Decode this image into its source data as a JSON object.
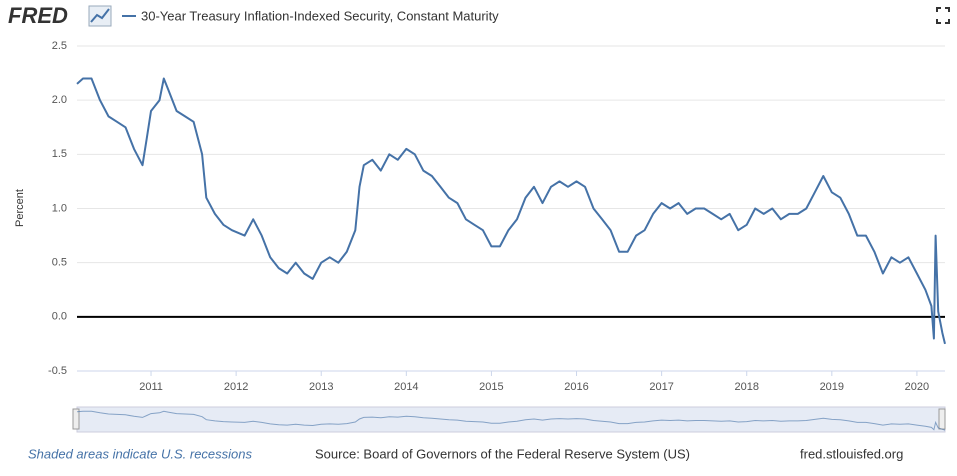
{
  "chart_data": {
    "type": "line",
    "logo": "FRED",
    "ylabel": "Percent",
    "recession_note": "Shaded areas indicate U.S. recessions",
    "source": "Source: Board of Governors of the Federal Reserve System (US)",
    "site": "fred.stlouisfed.org",
    "grid": true,
    "zero_line": true,
    "xlim": [
      2010.13,
      2020.33
    ],
    "xticks": [
      2011,
      2012,
      2013,
      2014,
      2015,
      2016,
      2017,
      2018,
      2019,
      2020
    ],
    "ylim": [
      -0.5,
      2.5
    ],
    "yticks": [
      {
        "value": 2.5,
        "label": "2.5"
      },
      {
        "value": 2,
        "label": "2.0"
      },
      {
        "value": 1.5,
        "label": "1.5"
      },
      {
        "value": 1,
        "label": "1.0"
      },
      {
        "value": 0.5,
        "label": "0.5"
      },
      {
        "value": 0,
        "label": "0.0"
      },
      {
        "value": -0.5,
        "label": "-0.5"
      }
    ],
    "x": [
      2010.13,
      2010.2,
      2010.3,
      2010.4,
      2010.5,
      2010.6,
      2010.7,
      2010.8,
      2010.9,
      2010.95,
      2011.0,
      2011.1,
      2011.15,
      2011.2,
      2011.3,
      2011.4,
      2011.5,
      2011.6,
      2011.65,
      2011.75,
      2011.85,
      2011.95,
      2012.1,
      2012.2,
      2012.3,
      2012.4,
      2012.5,
      2012.6,
      2012.7,
      2012.8,
      2012.9,
      2013.0,
      2013.1,
      2013.2,
      2013.3,
      2013.4,
      2013.45,
      2013.5,
      2013.6,
      2013.7,
      2013.8,
      2013.9,
      2014.0,
      2014.1,
      2014.2,
      2014.3,
      2014.4,
      2014.5,
      2014.6,
      2014.7,
      2014.8,
      2014.9,
      2015.0,
      2015.1,
      2015.2,
      2015.3,
      2015.4,
      2015.5,
      2015.6,
      2015.7,
      2015.8,
      2015.9,
      2016.0,
      2016.1,
      2016.2,
      2016.3,
      2016.4,
      2016.5,
      2016.6,
      2016.7,
      2016.8,
      2016.9,
      2017.0,
      2017.1,
      2017.2,
      2017.3,
      2017.4,
      2017.5,
      2017.6,
      2017.7,
      2017.8,
      2017.9,
      2018.0,
      2018.1,
      2018.2,
      2018.3,
      2018.4,
      2018.5,
      2018.6,
      2018.7,
      2018.8,
      2018.9,
      2019.0,
      2019.1,
      2019.2,
      2019.3,
      2019.4,
      2019.5,
      2019.6,
      2019.7,
      2019.8,
      2019.9,
      2020.0,
      2020.1,
      2020.17,
      2020.2,
      2020.22,
      2020.25,
      2020.3,
      2020.33
    ],
    "series": [
      {
        "name": "30-Year Treasury Inflation-Indexed Security, Constant Maturity",
        "color": "#4572a7",
        "values": [
          2.15,
          2.2,
          2.2,
          2.0,
          1.85,
          1.8,
          1.75,
          1.55,
          1.4,
          1.65,
          1.9,
          2.0,
          2.2,
          2.1,
          1.9,
          1.85,
          1.8,
          1.5,
          1.1,
          0.95,
          0.85,
          0.8,
          0.75,
          0.9,
          0.75,
          0.55,
          0.45,
          0.4,
          0.5,
          0.4,
          0.35,
          0.5,
          0.55,
          0.5,
          0.6,
          0.8,
          1.2,
          1.4,
          1.45,
          1.35,
          1.5,
          1.45,
          1.55,
          1.5,
          1.35,
          1.3,
          1.2,
          1.1,
          1.05,
          0.9,
          0.85,
          0.8,
          0.65,
          0.65,
          0.8,
          0.9,
          1.1,
          1.2,
          1.05,
          1.2,
          1.25,
          1.2,
          1.25,
          1.2,
          1.0,
          0.9,
          0.8,
          0.6,
          0.6,
          0.75,
          0.8,
          0.95,
          1.05,
          1.0,
          1.05,
          0.95,
          1.0,
          1.0,
          0.95,
          0.9,
          0.95,
          0.8,
          0.85,
          1.0,
          0.95,
          1.0,
          0.9,
          0.95,
          0.95,
          1.0,
          1.15,
          1.3,
          1.15,
          1.1,
          0.95,
          0.75,
          0.75,
          0.6,
          0.4,
          0.55,
          0.5,
          0.55,
          0.4,
          0.25,
          0.1,
          -0.2,
          0.75,
          0.05,
          -0.15,
          -0.25
        ]
      }
    ]
  }
}
